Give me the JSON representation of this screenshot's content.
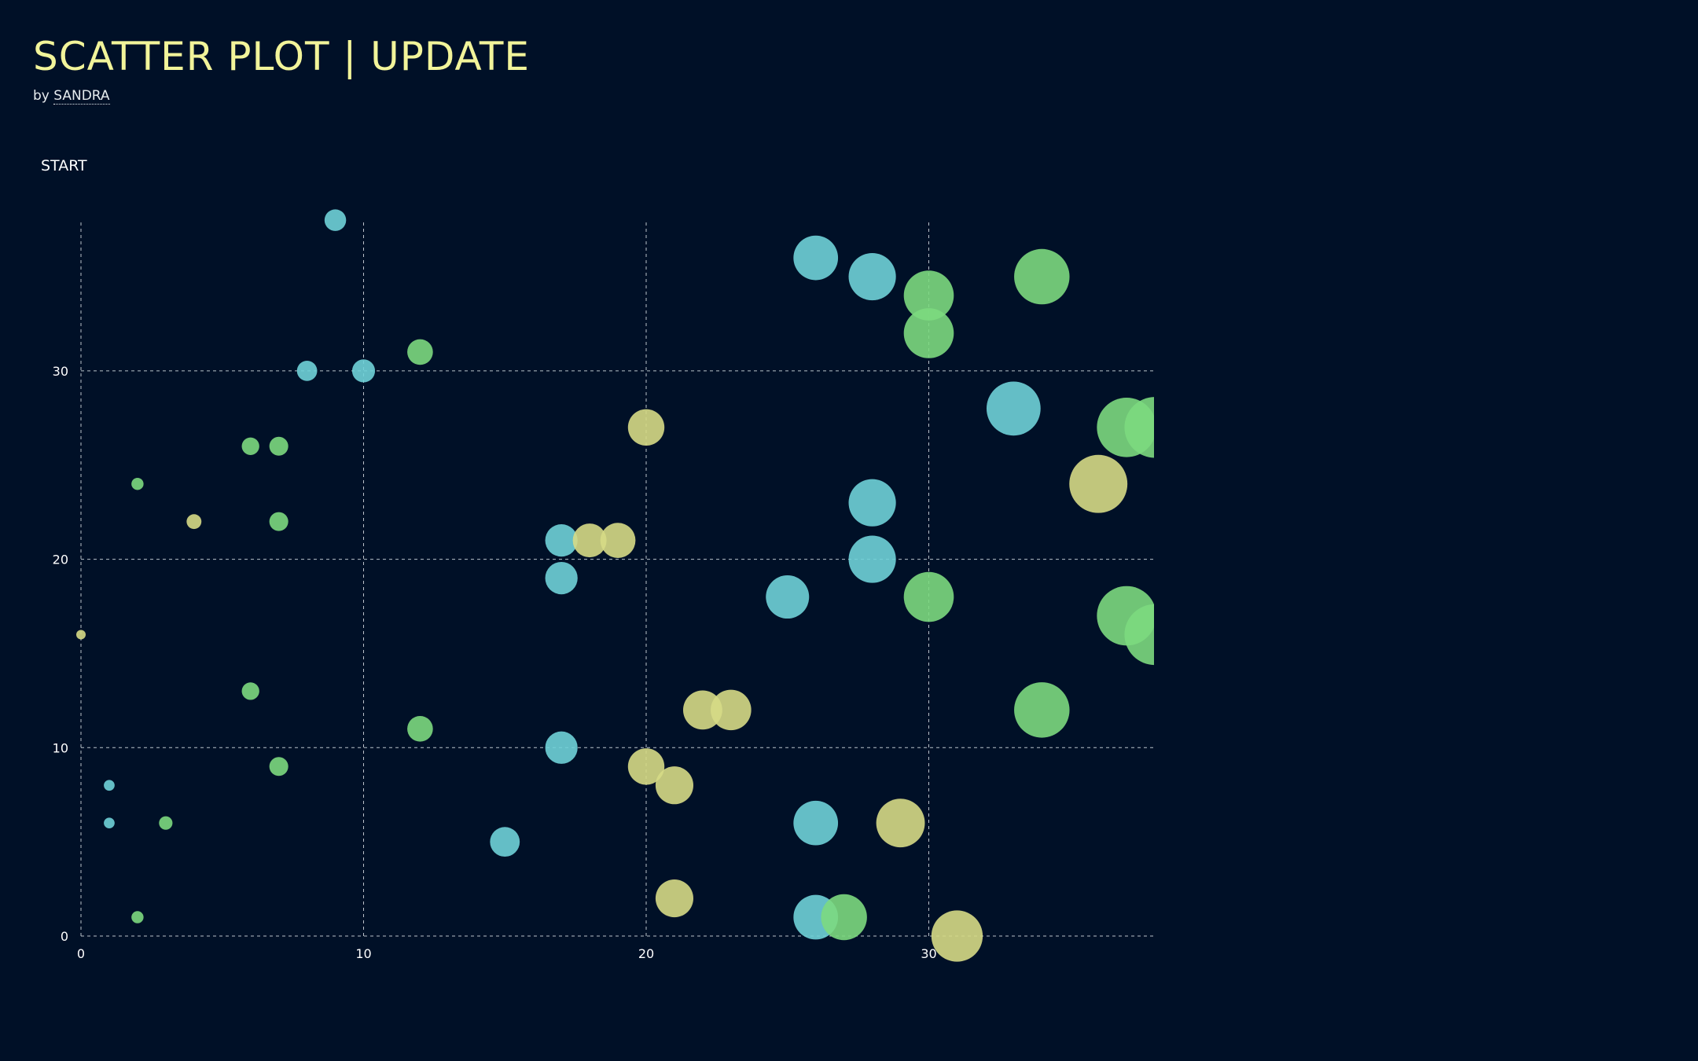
{
  "header": {
    "title": "SCATTER PLOT | UPDATE",
    "byline_prefix": "by ",
    "author": "SANDRA"
  },
  "controls": {
    "start_label": "START"
  },
  "colors": {
    "background": "#001027",
    "title": "#f2f49a",
    "cyan": "#6fd1d8",
    "green": "#7cd97f",
    "yellow": "#d6da86"
  },
  "chart_data": {
    "type": "scatter",
    "title": "",
    "xlabel": "",
    "ylabel": "",
    "xlim": [
      0,
      38
    ],
    "ylim": [
      0,
      38
    ],
    "xticks": [
      0,
      10,
      20,
      30
    ],
    "yticks": [
      0,
      10,
      20,
      30
    ],
    "grid": true,
    "size_encoding": "radius grows with x value",
    "series": [
      {
        "color": "cyan",
        "points": [
          {
            "x": 9,
            "y": 38
          },
          {
            "x": 8,
            "y": 30
          },
          {
            "x": 10,
            "y": 30
          },
          {
            "x": 1,
            "y": 8
          },
          {
            "x": 1,
            "y": 6
          },
          {
            "x": 15,
            "y": 5
          },
          {
            "x": 17,
            "y": 21
          },
          {
            "x": 17,
            "y": 19
          },
          {
            "x": 17,
            "y": 10
          },
          {
            "x": 25,
            "y": 18
          },
          {
            "x": 26,
            "y": 36
          },
          {
            "x": 28,
            "y": 35
          },
          {
            "x": 28,
            "y": 23
          },
          {
            "x": 28,
            "y": 20
          },
          {
            "x": 26,
            "y": 6
          },
          {
            "x": 26,
            "y": 1
          },
          {
            "x": 33,
            "y": 28
          }
        ]
      },
      {
        "color": "green",
        "points": [
          {
            "x": 2,
            "y": 24
          },
          {
            "x": 2,
            "y": 1
          },
          {
            "x": 3,
            "y": 6
          },
          {
            "x": 6,
            "y": 26
          },
          {
            "x": 7,
            "y": 26
          },
          {
            "x": 7,
            "y": 22
          },
          {
            "x": 6,
            "y": 13
          },
          {
            "x": 7,
            "y": 9
          },
          {
            "x": 12,
            "y": 31
          },
          {
            "x": 12,
            "y": 11
          },
          {
            "x": 30,
            "y": 34
          },
          {
            "x": 30,
            "y": 32
          },
          {
            "x": 30,
            "y": 18
          },
          {
            "x": 34,
            "y": 35
          },
          {
            "x": 34,
            "y": 12
          },
          {
            "x": 27,
            "y": 1
          },
          {
            "x": 37,
            "y": 27
          },
          {
            "x": 38,
            "y": 27
          },
          {
            "x": 37,
            "y": 17
          },
          {
            "x": 38,
            "y": 16
          }
        ]
      },
      {
        "color": "yellow",
        "points": [
          {
            "x": 0,
            "y": 16
          },
          {
            "x": 4,
            "y": 22
          },
          {
            "x": 18,
            "y": 21
          },
          {
            "x": 19,
            "y": 21
          },
          {
            "x": 20,
            "y": 27
          },
          {
            "x": 22,
            "y": 12
          },
          {
            "x": 23,
            "y": 12
          },
          {
            "x": 20,
            "y": 9
          },
          {
            "x": 21,
            "y": 8
          },
          {
            "x": 21,
            "y": 2
          },
          {
            "x": 29,
            "y": 6
          },
          {
            "x": 31,
            "y": 0
          },
          {
            "x": 36,
            "y": 24
          }
        ]
      }
    ]
  }
}
